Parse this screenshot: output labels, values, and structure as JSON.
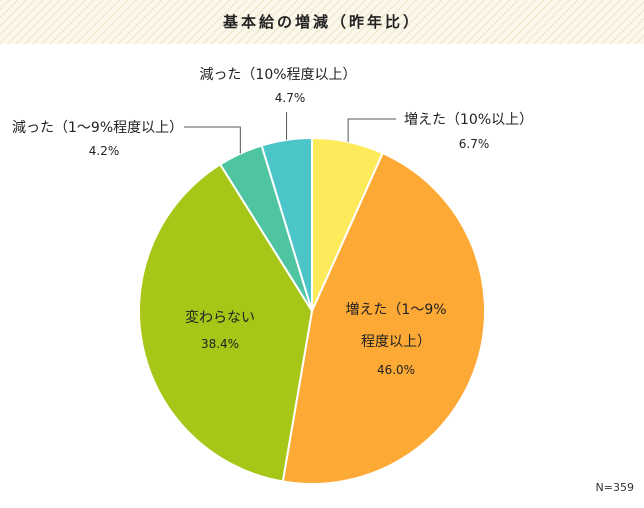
{
  "chart_data": {
    "type": "pie",
    "title": "基本給の増減（昨年比）",
    "slices": [
      {
        "label": "増えた（10%以上）",
        "value_label": "6.7%",
        "value": 6.7,
        "color": "#FDEB5C"
      },
      {
        "label_lines": [
          "増えた（1〜9%",
          "程度以上）"
        ],
        "value_label": "46.0%",
        "value": 46.0,
        "color": "#FDA936"
      },
      {
        "label": "変わらない",
        "value_label": "38.4%",
        "value": 38.4,
        "color": "#A7C718"
      },
      {
        "label": "減った（1〜9%程度以上）",
        "value_label": "4.2%",
        "value": 4.2,
        "color": "#4FC4A0"
      },
      {
        "label": "減った（10%程度以上）",
        "value_label": "4.7%",
        "value": 4.7,
        "color": "#4CC5C8"
      }
    ],
    "note": "N=359"
  }
}
